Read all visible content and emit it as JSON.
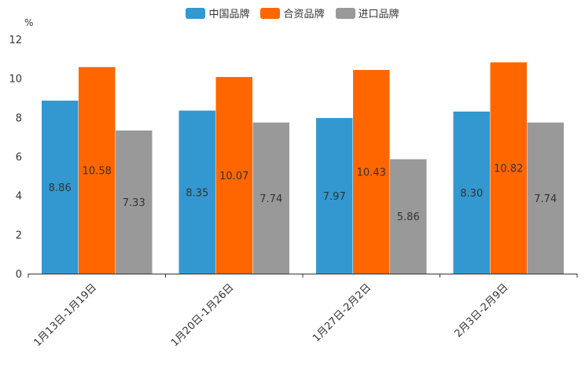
{
  "chart_data": {
    "type": "bar",
    "unit": "%",
    "categories": [
      "1月13日-1月19日",
      "1月20日-1月26日",
      "1月27日-2月2日",
      "2月3日-2月9日"
    ],
    "series": [
      {
        "name": "中国品牌",
        "color": "#3398d0",
        "values": [
          8.86,
          8.35,
          7.97,
          8.3
        ],
        "labels": [
          "8.86",
          "8.35",
          "7.97",
          "8.30"
        ]
      },
      {
        "name": "合资品牌",
        "color": "#ff6600",
        "values": [
          10.58,
          10.07,
          10.43,
          10.82
        ],
        "labels": [
          "10.58",
          "10.07",
          "10.43",
          "10.82"
        ]
      },
      {
        "name": "进口品牌",
        "color": "#999999",
        "values": [
          7.33,
          7.74,
          5.86,
          7.74
        ],
        "labels": [
          "7.33",
          "7.74",
          "5.86",
          "7.74"
        ]
      }
    ],
    "ylim": [
      0,
      12
    ],
    "yticks": [
      0,
      2,
      4,
      6,
      8,
      10,
      12
    ],
    "legend_position": "top-center"
  }
}
